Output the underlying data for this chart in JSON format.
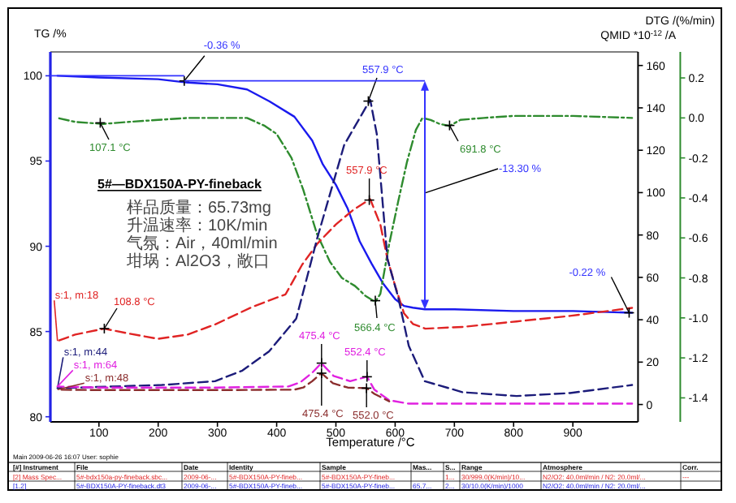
{
  "chart_data": {
    "type": "line",
    "title": "5#—BDX150A-PY-fineback",
    "xlabel": "Temperature /°C",
    "ylabel": "TG /%",
    "y2label": "QMID *10$^{-12}$ /A",
    "y3label": "DTG /(%/min)",
    "xlim": [
      18,
      1010
    ],
    "xticks": [
      100,
      200,
      300,
      400,
      500,
      600,
      700,
      800,
      900
    ],
    "ylim": [
      79.7,
      101.4
    ],
    "yticks": [
      80,
      85,
      90,
      95,
      100
    ],
    "y2lim": [
      -8.2,
      166.4
    ],
    "y2ticks": [
      0,
      20,
      40,
      60,
      80,
      100,
      120,
      140,
      160
    ],
    "y3lim": [
      -1.52,
      0.33
    ],
    "y3ticks": [
      {
        "value": -1.4,
        "label": "-1.4"
      },
      {
        "value": -1.2,
        "label": "-1.2"
      },
      {
        "value": -1.0,
        "label": "-1.0"
      },
      {
        "value": -0.8,
        "label": "-0.8"
      },
      {
        "value": -0.6,
        "label": "-0.6"
      },
      {
        "value": -0.4,
        "label": "-0.4"
      },
      {
        "value": -0.2,
        "label": "-0.2"
      },
      {
        "value": 0,
        "label": "0.0"
      },
      {
        "value": 0.2,
        "label": "0.2"
      }
    ],
    "marker": "none",
    "series": [
      {
        "color": "#1a1aee",
        "line_style": "solid",
        "x": [
          30,
          100,
          200,
          250,
          300,
          350,
          388,
          430,
          460,
          478,
          500,
          520,
          540,
          560,
          580,
          600,
          615,
          630,
          650,
          700,
          800,
          900,
          1000
        ],
        "values": [
          100.0,
          99.9,
          99.8,
          99.6,
          99.5,
          99.2,
          98.5,
          97.6,
          96.2,
          94.8,
          93.6,
          92.2,
          90.3,
          89.0,
          87.8,
          86.9,
          86.5,
          86.4,
          86.3,
          86.3,
          86.2,
          86.2,
          86.1
        ]
      },
      {
        "color": "#2e8b2e",
        "line_style": "dashdot",
        "axis": "y3",
        "x": [
          30,
          60,
          107.1,
          150,
          200,
          250,
          300,
          350,
          380,
          400,
          425,
          445,
          468,
          490,
          510,
          532,
          550,
          566.4,
          575,
          590,
          605,
          620,
          635,
          646,
          660,
          675,
          691.8,
          710,
          750,
          800,
          900,
          1000
        ],
        "values": [
          0.0,
          -0.02,
          -0.03,
          -0.02,
          -0.01,
          0.0,
          0.0,
          0.0,
          -0.04,
          -0.08,
          -0.2,
          -0.36,
          -0.58,
          -0.72,
          -0.8,
          -0.84,
          -0.89,
          -0.92,
          -0.88,
          -0.63,
          -0.42,
          -0.22,
          -0.06,
          0.0,
          -0.01,
          -0.03,
          -0.04,
          -0.01,
          0.0,
          0.01,
          0.01,
          0.0
        ]
      },
      {
        "name": "s:1, m:18",
        "color": "#e02424",
        "line_style": "dashed",
        "axis": "y2",
        "x": [
          30,
          60,
          108.8,
          150,
          200,
          250,
          297,
          360,
          415,
          443,
          469,
          500,
          530,
          557.9,
          575,
          587,
          600,
          615,
          630,
          651,
          714,
          805,
          895,
          1000
        ],
        "values": [
          30,
          33,
          35.8,
          33.5,
          31,
          33,
          37.9,
          46.2,
          52,
          66,
          76,
          85,
          92,
          96.9,
          85,
          68.7,
          56,
          43,
          38,
          35.8,
          36.6,
          39.2,
          41.8,
          45.6
        ]
      },
      {
        "name": "s:1, m:44",
        "color": "#1c1c7a",
        "line_style": "dashed",
        "axis": "y2",
        "x": [
          30,
          206,
          296,
          342,
          387,
          433,
          469,
          514,
          557.9,
          569,
          587,
          605,
          623,
          650,
          714,
          805,
          895,
          1000
        ],
        "values": [
          7.7,
          9.2,
          11,
          16,
          25,
          40.5,
          79,
          122.5,
          143.8,
          127.7,
          68.7,
          50.8,
          27.7,
          11,
          5.8,
          4,
          5.4,
          9.2
        ]
      },
      {
        "name": "s:1, m:64",
        "color": "#e020e0",
        "line_style": "dashed",
        "axis": "y2",
        "x": [
          30,
          100,
          300,
          420,
          440,
          460,
          475.4,
          496,
          524,
          552.4,
          565,
          590,
          623,
          800,
          1000
        ],
        "values": [
          8.5,
          8,
          8,
          8.5,
          10.5,
          15,
          19.5,
          13.5,
          11,
          13.1,
          7,
          2,
          0.4,
          0.4,
          0.4
        ]
      },
      {
        "name": "s:1, m:48",
        "color": "#8b2e2e",
        "line_style": "dashed",
        "axis": "y2",
        "x": [
          30,
          100,
          300,
          430,
          445,
          460,
          475.4,
          495,
          520,
          552,
          565,
          590
        ],
        "values": [
          7,
          6.8,
          6.8,
          7,
          8,
          11,
          14.8,
          10,
          8,
          7.7,
          5,
          1.5
        ]
      }
    ],
    "annotations": [
      {
        "text": "-0.36 %",
        "x": 244,
        "y": 99.7
      },
      "557.9 °C",
      "107.1 °C",
      "557.9 °C",
      "691.8 °C",
      "-13.30 %",
      "566.4 °C",
      {
        "text": "-0.22 %",
        "x": 995,
        "y": 86.1
      },
      "108.8 °C",
      "475.4 °C",
      "552.4 °C",
      "475.4 °C",
      "552.0 °C",
      "样品质量：65.73mg",
      "升温速率：10K/min",
      "气氛：Air，40ml/min",
      "坩埚：Al2O3，敞口",
      "Main  2009-06-26 16:07   User: sophie",
      "[#] Instrument",
      "File",
      "Date",
      "Identity",
      "Sample",
      "Mas...",
      "S...",
      "Range",
      "Atmosphere",
      "Corr.",
      "[2] Mass Spec...",
      "5#-bdx150a-py-fineback.sbc...",
      "2009-06-...",
      "5#-BDX150A-PY-fineb...",
      "5#-BDX150A-PY-fineb...",
      "1...",
      "30/999.0(K/min)/10...",
      "N2/O2: 40.0ml/min / N2: 20.0ml/...",
      "---",
      "[1.2]",
      "5#-BDX150A-PY-fineback.dt3",
      "2009-06-...",
      "5#-BDX150A-PY-fineb...",
      "5#-BDX150A-PY-fineb...",
      "65.7...",
      "2...",
      "30/10.0(K/min)/1000",
      "N2/O2: 40.0ml/min / N2: 20.0ml/..."
    ]
  }
}
